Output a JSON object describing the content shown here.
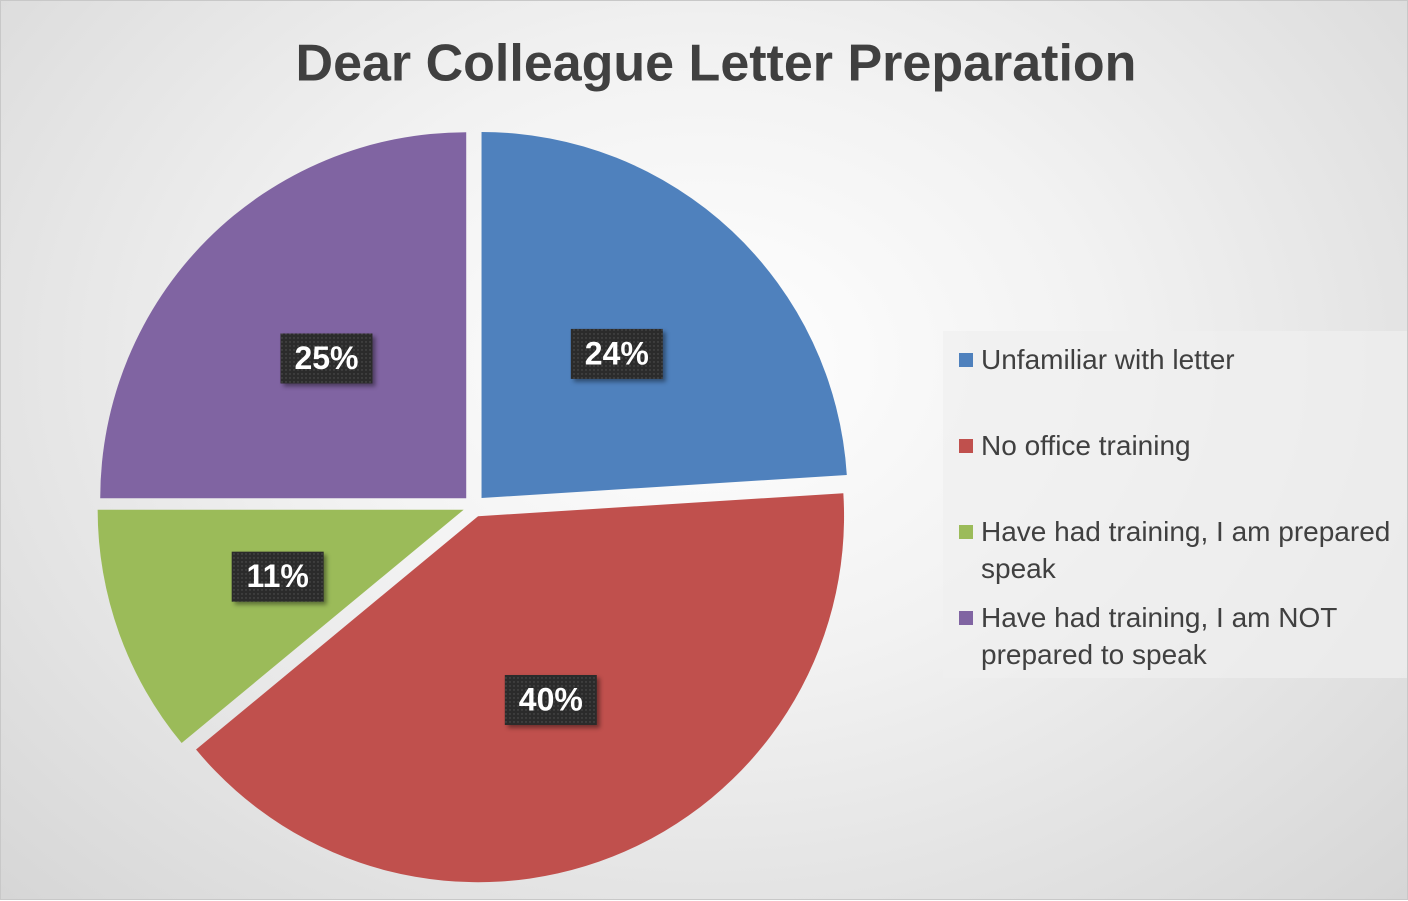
{
  "chart_data": {
    "type": "pie",
    "title": "Dear Colleague Letter Preparation",
    "categories": [
      "Unfamiliar with letter",
      "No office training",
      "Have had training, I am prepared speak",
      "Have had training, I am NOT prepared to speak"
    ],
    "values": [
      24,
      40,
      11,
      25
    ],
    "value_labels": [
      "24%",
      "40%",
      "11%",
      "25%"
    ],
    "colors": [
      "#4f81bd",
      "#c0504d",
      "#9bbb59",
      "#8064a2"
    ],
    "legend": "right"
  }
}
